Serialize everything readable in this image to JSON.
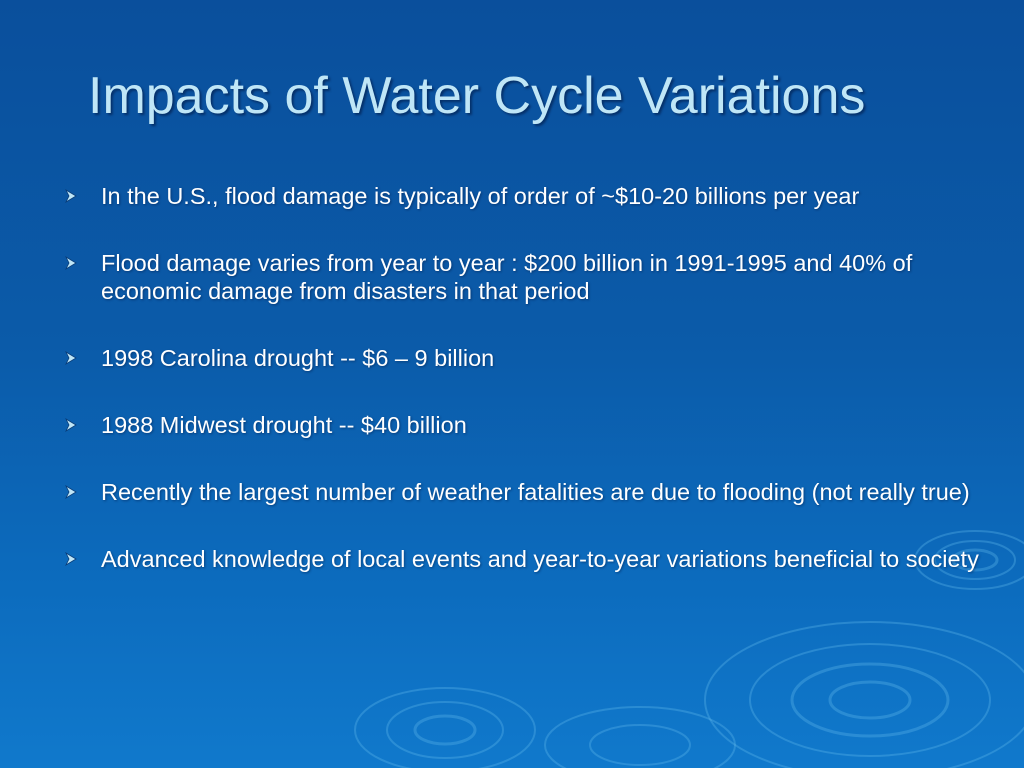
{
  "slide": {
    "title": "Impacts of Water Cycle Variations",
    "bullets": [
      {
        "text": "In the U.S., flood damage is typically of  order of ~$10-20 billions per year"
      },
      {
        "text": "Flood damage varies from year to year : $200 billion in 1991-1995 and 40% of economic damage from disasters in that period"
      },
      {
        "text": "1998 Carolina drought -- $6 – 9 billion"
      },
      {
        "text": "1988 Midwest drought -- $40 billion"
      },
      {
        "text": "Recently the largest number of weather fatalities are due to flooding (not really true)"
      },
      {
        "text": "Advanced knowledge of local events and year-to-year variations beneficial to society"
      }
    ],
    "bullet_icon": "arrowhead-bullet-icon"
  },
  "colors": {
    "background_top": "#0a4f9c",
    "background_bottom": "#1079cc",
    "title": "#bfe6f7",
    "body_text": "#ffffff",
    "bullet": "#bfe6f7"
  }
}
